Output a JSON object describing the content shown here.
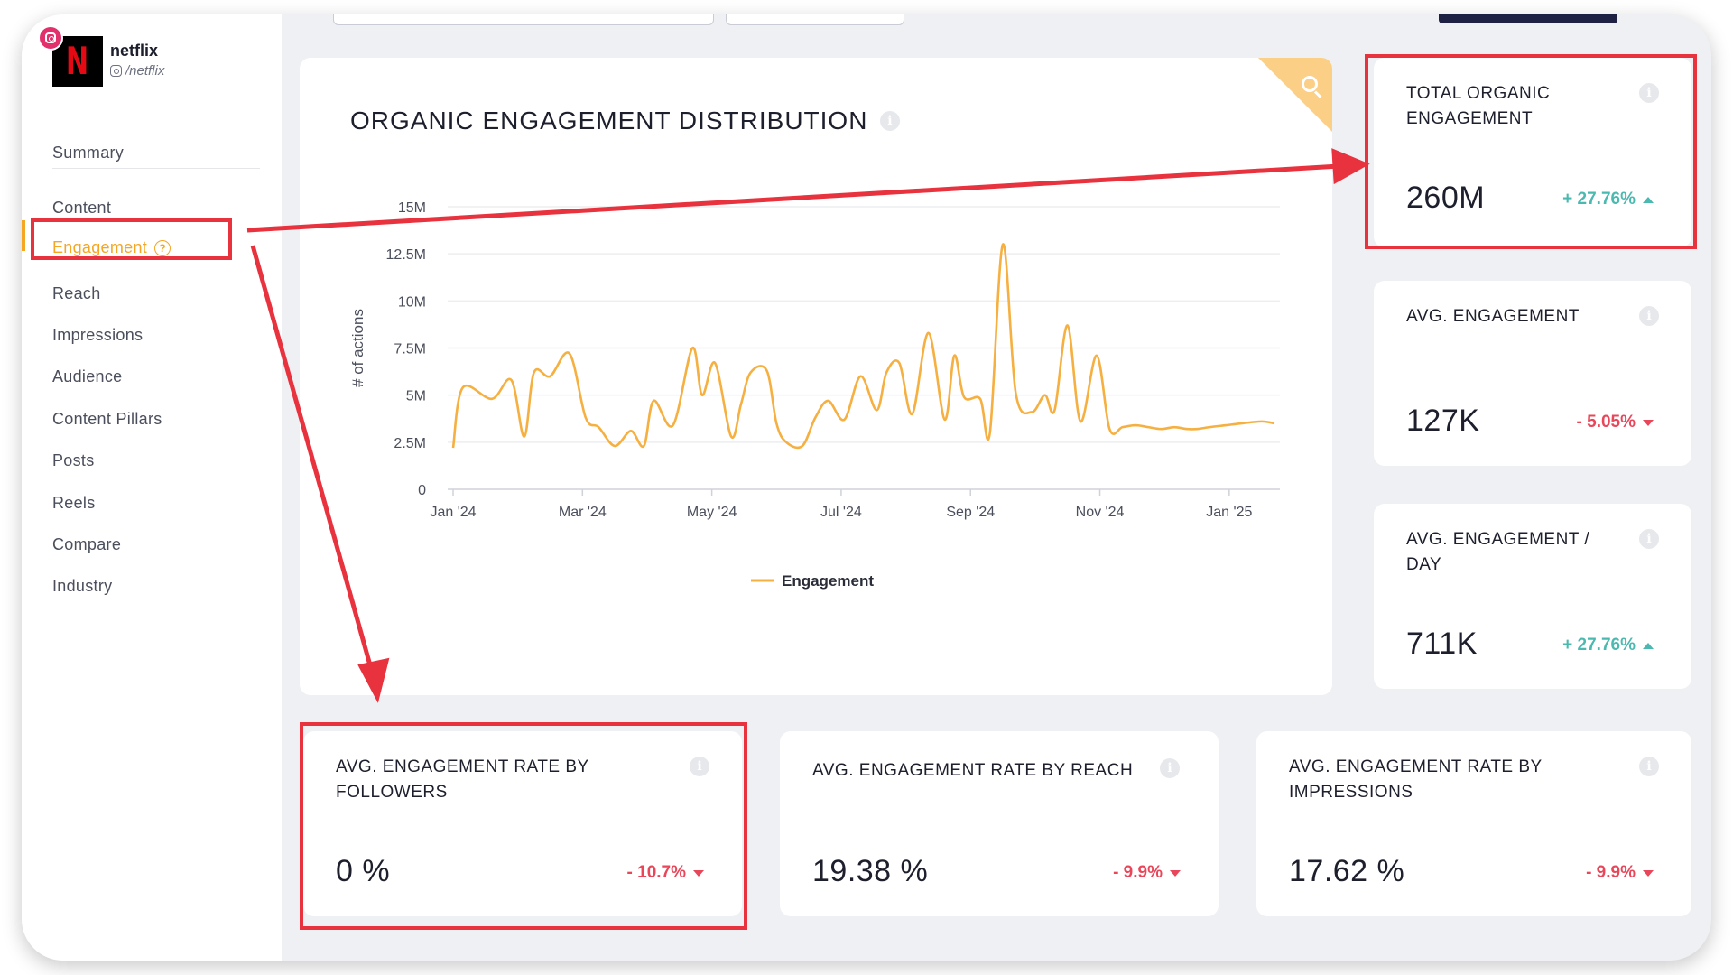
{
  "profile": {
    "name": "netflix",
    "handle": "/netflix",
    "logo_letter": "N"
  },
  "sidebar": {
    "items": [
      {
        "label": "Summary"
      },
      {
        "label": "Content"
      },
      {
        "label": "Engagement",
        "active": true
      },
      {
        "label": "Reach"
      },
      {
        "label": "Impressions"
      },
      {
        "label": "Audience"
      },
      {
        "label": "Content Pillars"
      },
      {
        "label": "Posts"
      },
      {
        "label": "Reels"
      },
      {
        "label": "Compare"
      },
      {
        "label": "Industry"
      }
    ],
    "help_glyph": "?"
  },
  "chart_card": {
    "title": "ORGANIC ENGAGEMENT DISTRIBUTION",
    "info_glyph": "i"
  },
  "chart_data": {
    "type": "line",
    "title": "ORGANIC ENGAGEMENT DISTRIBUTION",
    "ylabel": "# of actions",
    "xlabel": "",
    "ylim": [
      0,
      15000000
    ],
    "y_ticks": [
      "0",
      "2.5M",
      "5M",
      "7.5M",
      "10M",
      "12.5M",
      "15M"
    ],
    "x_ticks": [
      "Jan '24",
      "Mar '24",
      "May '24",
      "Jul '24",
      "Sep '24",
      "Nov '24",
      "Jan '25"
    ],
    "grid": true,
    "legend_position": "bottom-center",
    "series": [
      {
        "name": "Engagement",
        "color": "#f5b041",
        "x": [
          0,
          0.15,
          0.6,
          0.9,
          1.1,
          1.25,
          1.5,
          1.8,
          2.05,
          2.25,
          2.5,
          2.75,
          2.95,
          3.1,
          3.4,
          3.7,
          3.85,
          4.05,
          4.3,
          4.45,
          4.6,
          4.85,
          5.0,
          5.15,
          5.4,
          5.6,
          5.8,
          6.05,
          6.3,
          6.55,
          6.7,
          6.9,
          7.1,
          7.35,
          7.6,
          7.75,
          7.9,
          8.15,
          8.3,
          8.5,
          8.7,
          8.95,
          9.15,
          9.3,
          9.5,
          9.7,
          9.95,
          10.15,
          10.35,
          10.55,
          10.75,
          10.95,
          11.15,
          11.35,
          11.5,
          11.7,
          11.95,
          12.2,
          12.5,
          12.7
        ],
        "values": [
          2200000,
          5400000,
          4800000,
          5800000,
          2800000,
          6200000,
          6000000,
          7200000,
          3800000,
          3300000,
          2300000,
          3100000,
          2300000,
          4700000,
          3400000,
          7500000,
          5000000,
          6700000,
          2800000,
          4500000,
          6200000,
          6300000,
          3500000,
          2500000,
          2300000,
          3800000,
          4700000,
          3700000,
          6000000,
          4200000,
          6200000,
          6700000,
          4000000,
          8300000,
          3700000,
          7100000,
          4900000,
          4800000,
          3000000,
          13000000,
          5100000,
          4100000,
          5000000,
          4200000,
          8700000,
          3600000,
          7100000,
          3200000,
          3300000,
          3400000,
          3300000,
          3200000,
          3300000,
          3200000,
          3200000,
          3300000,
          3400000,
          3500000,
          3600000,
          3500000
        ]
      }
    ]
  },
  "metrics": {
    "total": {
      "title": "TOTAL ORGANIC ENGAGEMENT",
      "value": "260M",
      "delta": "+ 27.76%"
    },
    "avg": {
      "title": "AVG. ENGAGEMENT",
      "value": "127K",
      "delta": "- 5.05%"
    },
    "avg_day": {
      "title": "AVG. ENGAGEMENT / DAY",
      "value": "711K",
      "delta": "+ 27.76%"
    },
    "rate_followers": {
      "title": "AVG. ENGAGEMENT RATE BY FOLLOWERS",
      "value": "0 %",
      "delta": "- 10.7%"
    },
    "rate_reach": {
      "title": "AVG. ENGAGEMENT RATE BY REACH",
      "value": "19.38 %",
      "delta": "- 9.9%"
    },
    "rate_impr": {
      "title": "AVG. ENGAGEMENT RATE BY IMPRESSIONS",
      "value": "17.62 %",
      "delta": "- 9.9%"
    }
  },
  "colors": {
    "accent": "#f5a623",
    "line": "#f5b041",
    "positive": "#4ab9b0",
    "negative": "#e9465a",
    "highlight": "#e8323e"
  }
}
